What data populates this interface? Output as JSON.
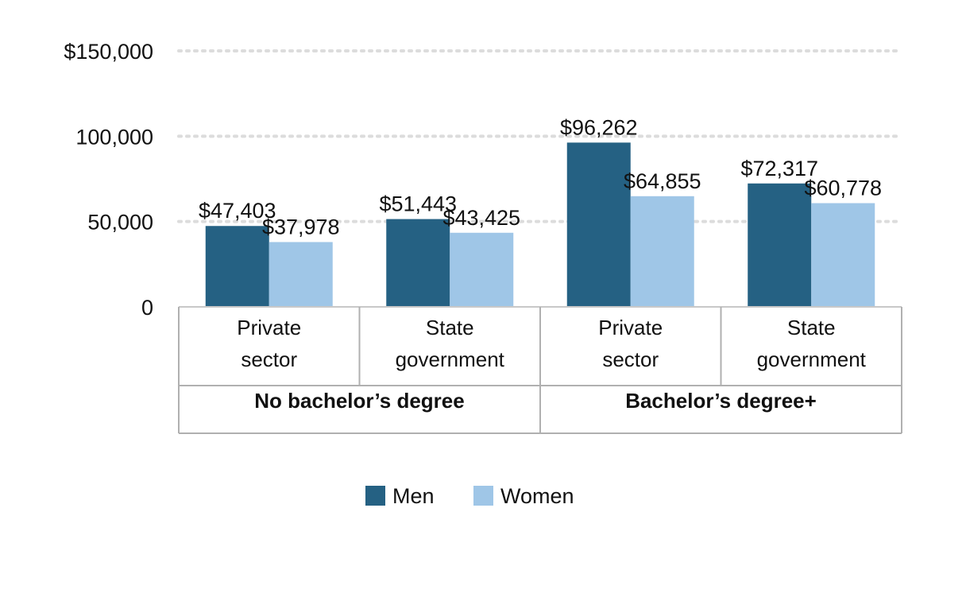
{
  "chart_data": {
    "type": "bar",
    "title": "",
    "xlabel": "",
    "ylabel": "",
    "ylim": [
      0,
      150000
    ],
    "y_ticks": [
      {
        "value": 0,
        "label": "0"
      },
      {
        "value": 50000,
        "label": "50,000"
      },
      {
        "value": 100000,
        "label": "100,000"
      },
      {
        "value": 150000,
        "label": "$150,000"
      }
    ],
    "grid": true,
    "grid_style": "dotted",
    "categories": [
      "Private sector",
      "State government",
      "Private sector",
      "State government"
    ],
    "category_lines": [
      [
        "Private",
        "sector"
      ],
      [
        "State",
        "government"
      ],
      [
        "Private",
        "sector"
      ],
      [
        "State",
        "government"
      ]
    ],
    "groups": [
      {
        "label": "No bachelor’s degree",
        "categories": [
          0,
          1
        ]
      },
      {
        "label": "Bachelor’s degree+",
        "categories": [
          2,
          3
        ]
      }
    ],
    "series": [
      {
        "name": "Men",
        "color": "#256183",
        "values": [
          47403,
          51443,
          96262,
          72317
        ],
        "labels": [
          "$47,403",
          "$51,443",
          "$96,262",
          "$72,317"
        ]
      },
      {
        "name": "Women",
        "color": "#9fc6e7",
        "values": [
          37978,
          43425,
          64855,
          60778
        ],
        "labels": [
          "$37,978",
          "$43,425",
          "$64,855",
          "$60,778"
        ]
      }
    ],
    "legend_position": "bottom-center"
  }
}
